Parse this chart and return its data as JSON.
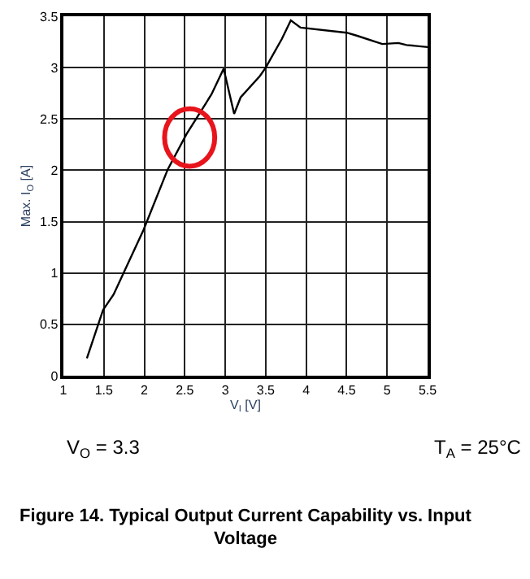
{
  "chart_data": {
    "type": "line",
    "title": "Figure 14. Typical Output Current Capability vs. Input Voltage",
    "xlabel": "V$_{I}$ [V]",
    "ylabel": "Max. I$_{O}$ [A]",
    "x": [
      1.29,
      1.49,
      1.62,
      1.99,
      2.29,
      2.52,
      2.83,
      2.98,
      3.11,
      3.19,
      3.43,
      3.5,
      3.7,
      3.81,
      3.93,
      4.5,
      4.63,
      4.94,
      5.14,
      5.24,
      5.5
    ],
    "series": [
      {
        "color": "#000000",
        "values": [
          0.17,
          0.64,
          0.79,
          1.42,
          2.01,
          2.35,
          2.74,
          2.99,
          2.55,
          2.71,
          2.92,
          3.0,
          3.28,
          3.46,
          3.39,
          3.34,
          3.31,
          3.23,
          3.24,
          3.22,
          3.2
        ]
      }
    ],
    "xlim": [
      1,
      5.5
    ],
    "xticks": [
      1,
      1.5,
      2,
      2.5,
      3,
      3.5,
      4,
      4.5,
      5,
      5.5
    ],
    "ylim": [
      0,
      3.5
    ],
    "yticks": [
      0,
      0.5,
      1,
      1.5,
      2,
      2.5,
      3,
      3.5
    ],
    "grid": true,
    "legend": false,
    "marker": "none",
    "line_style": "solid",
    "annotations": [
      "V$_{O}$ = 3.3",
      "T$_{A}$ = 25°C"
    ]
  }
}
